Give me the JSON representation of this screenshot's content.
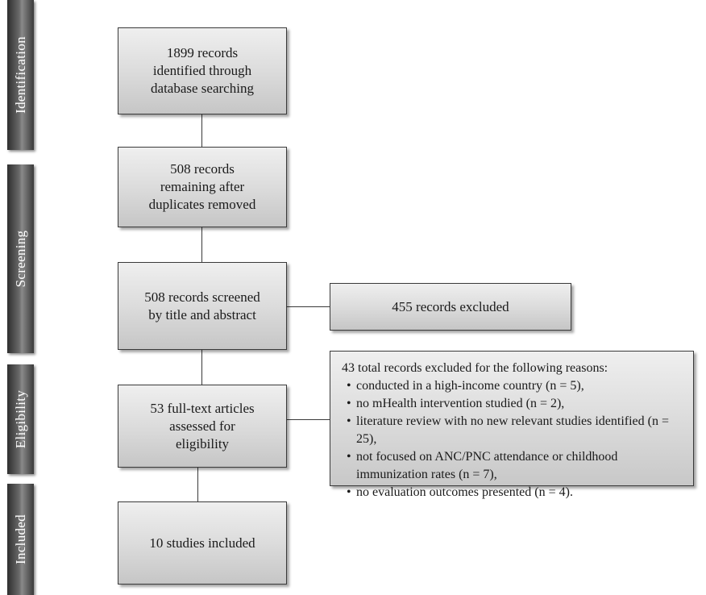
{
  "stages": {
    "identification": "Identification",
    "screening": "Screening",
    "eligibility": "Eligibility",
    "included": "Included"
  },
  "boxes": {
    "identified": [
      "1899 records",
      "identified through",
      "database searching"
    ],
    "duplicates_removed": [
      "508 records",
      "remaining after",
      "duplicates removed"
    ],
    "screened": [
      "508 records screened",
      "by title and abstract"
    ],
    "excluded_screening": [
      "455 records excluded"
    ],
    "fulltext": [
      "53 full-text articles",
      "assessed for",
      "eligibility"
    ],
    "included": [
      "10 studies included"
    ]
  },
  "exclusion": {
    "intro": "43 total records excluded for the following reasons:",
    "reasons": [
      "conducted in a high-income country (n = 5),",
      "no mHealth intervention studied (n = 2),",
      "literature review with no new relevant studies identified (n = 25),",
      "not focused on ANC/PNC attendance or childhood immunization rates (n = 7),",
      "no evaluation outcomes presented (n = 4)."
    ]
  }
}
